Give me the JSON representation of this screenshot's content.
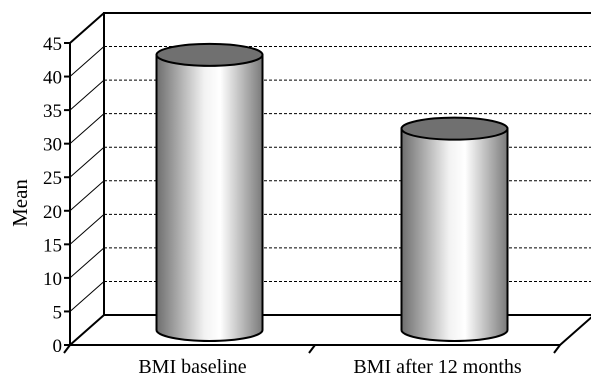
{
  "chart_data": {
    "type": "bar",
    "title": "",
    "xlabel": "",
    "ylabel": "Mean",
    "categories": [
      "BMI baseline",
      "BMI after 12 months"
    ],
    "values": [
      41,
      30
    ],
    "ylim": [
      0,
      45
    ],
    "yticks": [
      "0",
      "5",
      "10",
      "15",
      "20",
      "25",
      "30",
      "35",
      "40",
      "45"
    ],
    "grid": true,
    "bar_style": "3d-cylinder",
    "colors": {
      "bar_light": "#ffffff",
      "bar_mid": "#b8b8b8",
      "bar_dark": "#6a6a6a",
      "top": "#707070"
    }
  }
}
